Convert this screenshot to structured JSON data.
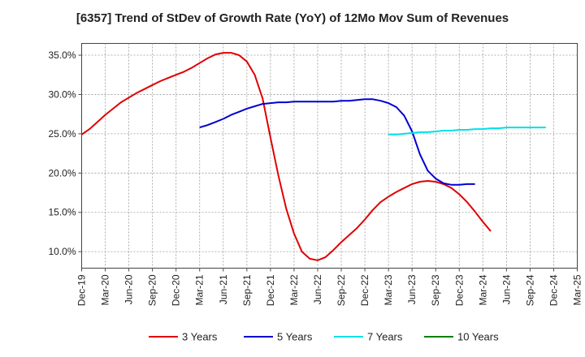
{
  "chart_data": {
    "type": "line",
    "title": "[6357]  Trend of StDev of Growth Rate (YoY) of 12Mo Mov Sum of Revenues",
    "xlabel": "",
    "ylabel": "",
    "grid": true,
    "legend_position": "bottom",
    "x_ticks": [
      "Dec-19",
      "Mar-20",
      "Jun-20",
      "Sep-20",
      "Dec-20",
      "Mar-21",
      "Jun-21",
      "Sep-21",
      "Dec-21",
      "Mar-22",
      "Jun-22",
      "Sep-22",
      "Dec-22",
      "Mar-23",
      "Jun-23",
      "Sep-23",
      "Dec-23",
      "Mar-24",
      "Jun-24",
      "Sep-24",
      "Dec-24",
      "Mar-25"
    ],
    "y_ticks": [
      "10.0%",
      "15.0%",
      "20.0%",
      "25.0%",
      "30.0%",
      "35.0%"
    ],
    "y_tick_values": [
      10,
      15,
      20,
      25,
      30,
      35
    ],
    "ylim": [
      7.9,
      36.5
    ],
    "series": [
      {
        "name": "3 Years",
        "color": "#e00000",
        "start_index": 0,
        "values": [
          24.9,
          25.6,
          26.5,
          27.4,
          28.2,
          29.0,
          29.6,
          30.2,
          30.7,
          31.2,
          31.7,
          32.1,
          32.5,
          32.9,
          33.4,
          34.0,
          34.6,
          35.1,
          35.3,
          35.3,
          35.0,
          34.2,
          32.5,
          29.5,
          24.5,
          19.7,
          15.5,
          12.3,
          10.0,
          9.1,
          8.9,
          9.3,
          10.2,
          11.2,
          12.1,
          13.0,
          14.1,
          15.3,
          16.3,
          17.0,
          17.6,
          18.1,
          18.6,
          18.9,
          19.0,
          18.9,
          18.6,
          18.1,
          17.3,
          16.3,
          15.1,
          13.8,
          12.6
        ]
      },
      {
        "name": "5 Years",
        "color": "#0000d0",
        "start_index": 15,
        "values": [
          25.8,
          26.1,
          26.5,
          26.9,
          27.4,
          27.8,
          28.2,
          28.5,
          28.8,
          28.9,
          29.0,
          29.0,
          29.1,
          29.1,
          29.1,
          29.1,
          29.1,
          29.1,
          29.2,
          29.2,
          29.3,
          29.4,
          29.4,
          29.2,
          28.9,
          28.4,
          27.3,
          25.3,
          22.4,
          20.3,
          19.3,
          18.7,
          18.5,
          18.5,
          18.6,
          18.6
        ]
      },
      {
        "name": "7 Years",
        "color": "#00e0e8",
        "start_index": 39,
        "values": [
          24.9,
          24.9,
          25.0,
          25.1,
          25.2,
          25.2,
          25.3,
          25.4,
          25.4,
          25.5,
          25.5,
          25.6,
          25.6,
          25.7,
          25.7,
          25.8,
          25.8,
          25.8,
          25.8,
          25.8,
          25.8
        ]
      },
      {
        "name": "10 Years",
        "color": "#008000",
        "start_index": 0,
        "values": []
      }
    ]
  }
}
